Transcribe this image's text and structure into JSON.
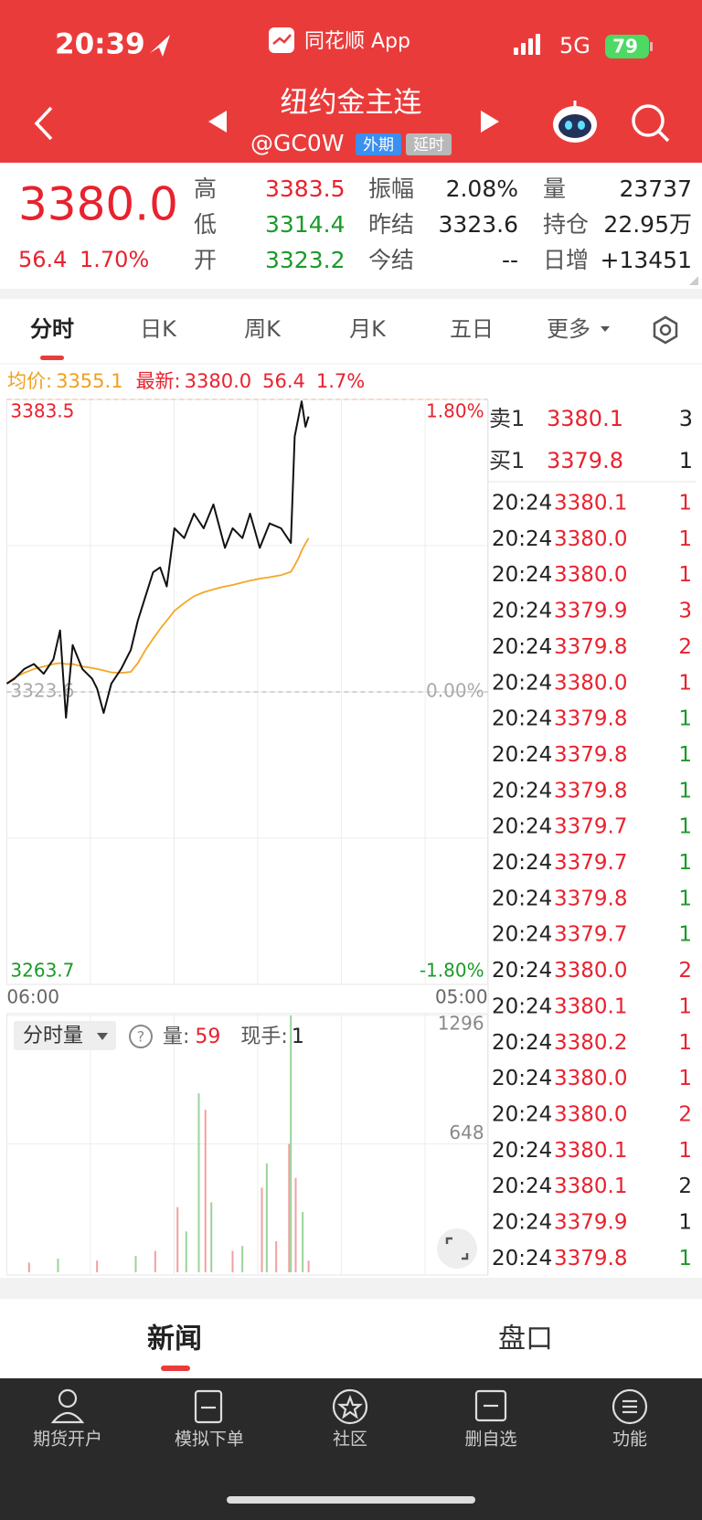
{
  "status_bar": {
    "time": "20:39",
    "app": "同花顺 App",
    "network": "5G",
    "battery": "79"
  },
  "header": {
    "title": "纽约金主连",
    "code": "@GC0W",
    "badges": [
      "外期",
      "延时"
    ]
  },
  "quote": {
    "price": "3380.0",
    "change": "56.4",
    "change_pct": "1.70%",
    "rows": [
      [
        {
          "label": "高",
          "value": "3383.5",
          "color": "#e8222e"
        },
        {
          "label": "振幅",
          "value": "2.08%",
          "color": "#222222"
        },
        {
          "label": "量",
          "value": "23737",
          "color": "#222222"
        }
      ],
      [
        {
          "label": "低",
          "value": "3314.4",
          "color": "#1a9a2a"
        },
        {
          "label": "昨结",
          "value": "3323.6",
          "color": "#222222"
        },
        {
          "label": "持仓",
          "value": "22.95万",
          "color": "#222222"
        }
      ],
      [
        {
          "label": "开",
          "value": "3323.2",
          "color": "#1a9a2a"
        },
        {
          "label": "今结",
          "value": "--",
          "color": "#222222"
        },
        {
          "label": "日增",
          "value": "+13451",
          "color": "#222222"
        }
      ]
    ]
  },
  "tabs": [
    "分时",
    "日K",
    "周K",
    "月K",
    "五日",
    "更多"
  ],
  "legend": {
    "avg_label": "均价:",
    "avg": "3355.1",
    "last_label": "最新:",
    "last": "3380.0",
    "change": "56.4",
    "change_pct": "1.7%"
  },
  "chart_data": [
    {
      "type": "line",
      "x": [
        0,
        22,
        50,
        78,
        106,
        134,
        153,
        170,
        189,
        217,
        245,
        259,
        278,
        300,
        328,
        356,
        376,
        398,
        420,
        440,
        459,
        481,
        509,
        537,
        565,
        593,
        626,
        648,
        676,
        698,
        726,
        754,
        787,
        815,
        826,
        837,
        846,
        857,
        866
      ],
      "xlim": [
        0,
        1380
      ],
      "xticks": [
        {
          "value": 0,
          "label": "06:00"
        },
        {
          "value": 1380,
          "label": "05:00"
        }
      ],
      "ylim": [
        3263.7,
        3383.5
      ],
      "yticks": [
        3263.7,
        3323.6,
        3383.5
      ],
      "ytick_colors": [
        "#1a9a2a",
        "#aaaaaa",
        "#e8222e"
      ],
      "y2lim": [
        -1.8,
        1.8
      ],
      "y2ticks": [
        {
          "value": -1.8,
          "label": "-1.80%"
        },
        {
          "value": 0,
          "label": "0.00%"
        },
        {
          "value": 1.8,
          "label": "1.80%"
        }
      ],
      "y2tick_colors": [
        "#1a9a2a",
        "#aaaaaa",
        "#e8222e"
      ],
      "series": [
        {
          "color": "#111111",
          "values": [
            3325.3,
            3326.3,
            3328.3,
            3329.3,
            3327.3,
            3330.3,
            3336.2,
            3318.3,
            3333.2,
            3328.3,
            3326.3,
            3324.3,
            3319.3,
            3325.3,
            3328.3,
            3332.2,
            3338.2,
            3343.2,
            3348.1,
            3349.1,
            3345.2,
            3357.1,
            3355.1,
            3360.1,
            3357.1,
            3362.0,
            3353.1,
            3357.1,
            3355.1,
            3360.1,
            3353.1,
            3358.1,
            3357.1,
            3354.1,
            3375.9,
            3379.9,
            3383.1,
            3377.9,
            3380.0
          ]
        },
        {
          "color": "#f5a623",
          "values": [
            3325.3,
            3326.5,
            3327.5,
            3328.3,
            3328.8,
            3329.3,
            3329.5,
            3329.3,
            3329.3,
            3328.8,
            3328.5,
            3328.3,
            3328.0,
            3327.6,
            3327.5,
            3327.7,
            3329.5,
            3332.2,
            3334.5,
            3336.5,
            3338.2,
            3340.2,
            3341.8,
            3343.2,
            3344.0,
            3344.6,
            3345.2,
            3345.5,
            3346.0,
            3346.4,
            3346.8,
            3347.1,
            3347.5,
            3348.2,
            3349.5,
            3351.0,
            3352.5,
            3354.0,
            3355.1
          ]
        }
      ]
    },
    {
      "type": "bar",
      "x": [
        64,
        147,
        259,
        370,
        426,
        490,
        515,
        551,
        570,
        587,
        648,
        676,
        732,
        746,
        773,
        810,
        815,
        829,
        849,
        866
      ],
      "values": [
        49,
        69,
        59,
        83,
        108,
        329,
        206,
        903,
        820,
        353,
        108,
        133,
        427,
        550,
        157,
        648,
        1296,
        476,
        304,
        59
      ],
      "colors": [
        "#f2a0a0",
        "#9ad49a",
        "#f2a0a0",
        "#9ad49a",
        "#f2a0a0",
        "#f2a0a0",
        "#9ad49a",
        "#9ad49a",
        "#f2a0a0",
        "#9ad49a",
        "#f2a0a0",
        "#9ad49a",
        "#f2a0a0",
        "#9ad49a",
        "#f2a0a0",
        "#f2a0a0",
        "#9ad49a",
        "#f2a0a0",
        "#9ad49a",
        "#f2a0a0"
      ],
      "xlim": [
        0,
        1380
      ],
      "ylim": [
        0,
        1296
      ],
      "yticks": [
        648,
        1296
      ]
    }
  ],
  "volume_header": {
    "selector": "分时量",
    "vol_label": "量:",
    "vol": "59",
    "hand_label": "现手:",
    "hand": "1"
  },
  "order_book": [
    {
      "side": "卖1",
      "price": "3380.1",
      "qty": "3"
    },
    {
      "side": "买1",
      "price": "3379.8",
      "qty": "1"
    }
  ],
  "trades": [
    {
      "time": "20:24",
      "price": "3380.1",
      "qty": "1",
      "color": "#e8222e"
    },
    {
      "time": "20:24",
      "price": "3380.0",
      "qty": "1",
      "color": "#e8222e"
    },
    {
      "time": "20:24",
      "price": "3380.0",
      "qty": "1",
      "color": "#e8222e"
    },
    {
      "time": "20:24",
      "price": "3379.9",
      "qty": "3",
      "color": "#e8222e"
    },
    {
      "time": "20:24",
      "price": "3379.8",
      "qty": "2",
      "color": "#e8222e"
    },
    {
      "time": "20:24",
      "price": "3380.0",
      "qty": "1",
      "color": "#e8222e"
    },
    {
      "time": "20:24",
      "price": "3379.8",
      "qty": "1",
      "color": "#1a9a2a"
    },
    {
      "time": "20:24",
      "price": "3379.8",
      "qty": "1",
      "color": "#1a9a2a"
    },
    {
      "time": "20:24",
      "price": "3379.8",
      "qty": "1",
      "color": "#1a9a2a"
    },
    {
      "time": "20:24",
      "price": "3379.7",
      "qty": "1",
      "color": "#1a9a2a"
    },
    {
      "time": "20:24",
      "price": "3379.7",
      "qty": "1",
      "color": "#1a9a2a"
    },
    {
      "time": "20:24",
      "price": "3379.8",
      "qty": "1",
      "color": "#1a9a2a"
    },
    {
      "time": "20:24",
      "price": "3379.7",
      "qty": "1",
      "color": "#1a9a2a"
    },
    {
      "time": "20:24",
      "price": "3380.0",
      "qty": "2",
      "color": "#e8222e"
    },
    {
      "time": "20:24",
      "price": "3380.1",
      "qty": "1",
      "color": "#e8222e"
    },
    {
      "time": "20:24",
      "price": "3380.2",
      "qty": "1",
      "color": "#e8222e"
    },
    {
      "time": "20:24",
      "price": "3380.0",
      "qty": "1",
      "color": "#e8222e"
    },
    {
      "time": "20:24",
      "price": "3380.0",
      "qty": "2",
      "color": "#e8222e"
    },
    {
      "time": "20:24",
      "price": "3380.1",
      "qty": "1",
      "color": "#e8222e"
    },
    {
      "time": "20:24",
      "price": "3380.1",
      "qty": "2",
      "color": "#222222"
    },
    {
      "time": "20:24",
      "price": "3379.9",
      "qty": "1",
      "color": "#222222"
    },
    {
      "time": "20:24",
      "price": "3379.8",
      "qty": "1",
      "color": "#1a9a2a"
    }
  ],
  "bottom_tabs": [
    "新闻",
    "盘口"
  ],
  "nav": [
    "期货开户",
    "模拟下单",
    "社区",
    "删自选",
    "功能"
  ]
}
